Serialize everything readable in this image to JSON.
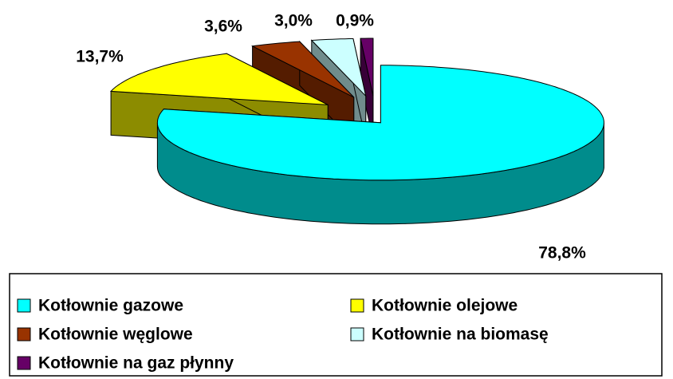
{
  "chart_data": {
    "type": "pie3d",
    "categories": [
      "Kotłownie gazowe",
      "Kotłownie olejowe",
      "Kotłownie węglowe",
      "Kotłownie na biomasę",
      "Kotłownie na gaz płynny"
    ],
    "values": [
      78.8,
      13.7,
      3.6,
      3.0,
      0.9
    ],
    "value_labels": [
      "78,8%",
      "13,7%",
      "3,6%",
      "3,0%",
      "0,9%"
    ],
    "colors": [
      "#00FFFF",
      "#FFFF00",
      "#993300",
      "#CCFFFF",
      "#660066"
    ]
  }
}
